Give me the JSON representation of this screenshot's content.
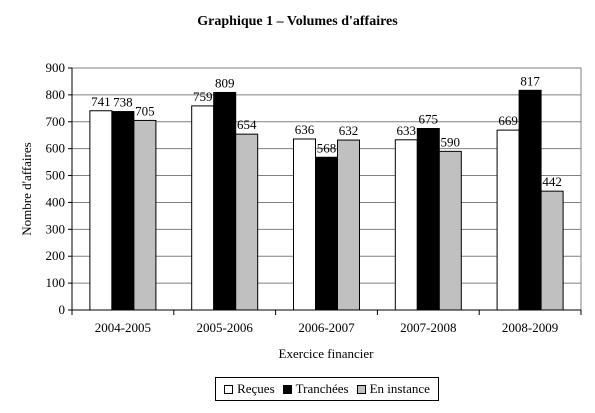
{
  "chart_data": {
    "type": "bar",
    "title": "Graphique 1 – Volumes d'affaires",
    "xlabel": "Exercice financier",
    "ylabel": "Nombre d'affaires",
    "categories": [
      "2004-2005",
      "2005-2006",
      "2006-2007",
      "2007-2008",
      "2008-2009"
    ],
    "series": [
      {
        "name": "Reçues",
        "values": [
          741,
          759,
          636,
          633,
          669
        ],
        "color": "#ffffff"
      },
      {
        "name": "Tranchées",
        "values": [
          738,
          809,
          568,
          675,
          817
        ],
        "color": "#000000"
      },
      {
        "name": "En instance",
        "values": [
          705,
          654,
          632,
          590,
          442
        ],
        "color": "#c0c0c0"
      }
    ],
    "ylim": [
      0,
      900
    ],
    "yticks": [
      0,
      100,
      200,
      300,
      400,
      500,
      600,
      700,
      800,
      900
    ],
    "grid": true,
    "legend_position": "bottom"
  }
}
